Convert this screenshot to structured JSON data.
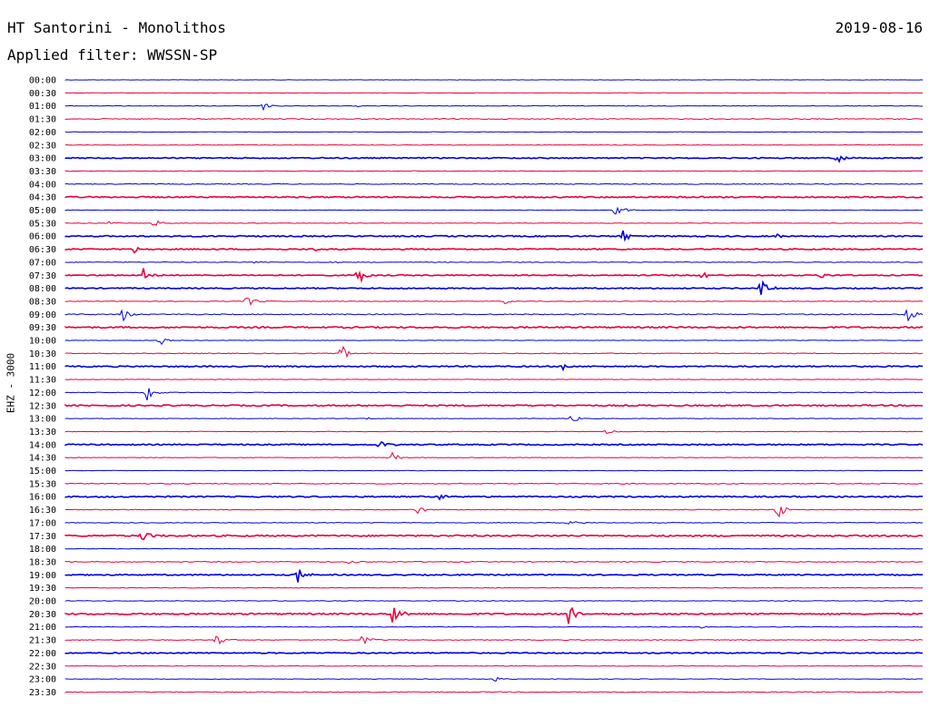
{
  "header": {
    "station": "HT Santorini - Monolithos",
    "date": "2019-08-16",
    "filter": "Applied filter: WWSSN-SP"
  },
  "chart_data": {
    "type": "line",
    "title": "HT Santorini - Monolithos",
    "ylabel": "EHZ - 3000",
    "colors": {
      "even": "#0000e0",
      "odd": "#e8003c"
    },
    "rows": [
      {
        "time": "00:00",
        "noise": 0.4,
        "events": []
      },
      {
        "time": "00:30",
        "noise": 0.4,
        "events": []
      },
      {
        "time": "01:00",
        "noise": 0.6,
        "events": [
          {
            "t": 0.23,
            "a": 5
          },
          {
            "t": 0.34,
            "a": 1
          }
        ]
      },
      {
        "time": "01:30",
        "noise": 1.0,
        "events": []
      },
      {
        "time": "02:00",
        "noise": 0.5,
        "events": []
      },
      {
        "time": "02:30",
        "noise": 0.5,
        "events": []
      },
      {
        "time": "03:00",
        "noise": 1.2,
        "events": [
          {
            "t": 0.9,
            "a": 7
          }
        ]
      },
      {
        "time": "03:30",
        "noise": 0.6,
        "events": []
      },
      {
        "time": "04:00",
        "noise": 0.8,
        "events": []
      },
      {
        "time": "04:30",
        "noise": 1.4,
        "events": []
      },
      {
        "time": "05:00",
        "noise": 0.6,
        "events": [
          {
            "t": 0.64,
            "a": 12
          }
        ]
      },
      {
        "time": "05:30",
        "noise": 0.6,
        "events": [
          {
            "t": 0.1,
            "a": 7
          },
          {
            "t": 0.05,
            "a": 2
          }
        ]
      },
      {
        "time": "06:00",
        "noise": 1.4,
        "events": [
          {
            "t": 0.65,
            "a": 10
          },
          {
            "t": 0.83,
            "a": 3
          }
        ]
      },
      {
        "time": "06:30",
        "noise": 1.3,
        "events": [
          {
            "t": 0.08,
            "a": 5
          },
          {
            "t": 0.29,
            "a": 3
          }
        ]
      },
      {
        "time": "07:00",
        "noise": 0.7,
        "events": [
          {
            "t": 0.22,
            "a": 2
          },
          {
            "t": 0.31,
            "a": 2
          }
        ]
      },
      {
        "time": "07:30",
        "noise": 1.2,
        "events": [
          {
            "t": 0.09,
            "a": 9
          },
          {
            "t": 0.34,
            "a": 12
          },
          {
            "t": 0.74,
            "a": 8
          },
          {
            "t": 0.88,
            "a": 5
          }
        ]
      },
      {
        "time": "08:00",
        "noise": 1.2,
        "events": [
          {
            "t": 0.81,
            "a": 12
          }
        ]
      },
      {
        "time": "08:30",
        "noise": 0.7,
        "events": [
          {
            "t": 0.21,
            "a": 9
          },
          {
            "t": 0.51,
            "a": 4
          }
        ]
      },
      {
        "time": "09:00",
        "noise": 1.1,
        "events": [
          {
            "t": 0.065,
            "a": 10
          },
          {
            "t": 0.98,
            "a": 15
          }
        ]
      },
      {
        "time": "09:30",
        "noise": 1.6,
        "events": []
      },
      {
        "time": "10:00",
        "noise": 0.6,
        "events": [
          {
            "t": 0.11,
            "a": 6
          }
        ]
      },
      {
        "time": "10:30",
        "noise": 0.9,
        "events": [
          {
            "t": 0.32,
            "a": 13
          }
        ]
      },
      {
        "time": "11:00",
        "noise": 1.4,
        "events": [
          {
            "t": 0.58,
            "a": 5
          }
        ]
      },
      {
        "time": "11:30",
        "noise": 0.6,
        "events": []
      },
      {
        "time": "12:00",
        "noise": 0.7,
        "events": [
          {
            "t": 0.095,
            "a": 12
          }
        ]
      },
      {
        "time": "12:30",
        "noise": 1.5,
        "events": []
      },
      {
        "time": "13:00",
        "noise": 0.6,
        "events": [
          {
            "t": 0.35,
            "a": 2
          },
          {
            "t": 0.59,
            "a": 7
          }
        ]
      },
      {
        "time": "13:30",
        "noise": 0.6,
        "events": [
          {
            "t": 0.63,
            "a": 3
          }
        ]
      },
      {
        "time": "14:00",
        "noise": 1.3,
        "events": [
          {
            "t": 0.365,
            "a": 8
          }
        ]
      },
      {
        "time": "14:30",
        "noise": 0.6,
        "events": [
          {
            "t": 0.38,
            "a": 7
          }
        ]
      },
      {
        "time": "15:00",
        "noise": 0.5,
        "events": []
      },
      {
        "time": "15:30",
        "noise": 1.0,
        "events": []
      },
      {
        "time": "16:00",
        "noise": 1.4,
        "events": [
          {
            "t": 0.435,
            "a": 4
          }
        ]
      },
      {
        "time": "16:30",
        "noise": 0.8,
        "events": [
          {
            "t": 0.41,
            "a": 5
          },
          {
            "t": 0.83,
            "a": 12
          }
        ]
      },
      {
        "time": "17:00",
        "noise": 0.8,
        "events": [
          {
            "t": 0.585,
            "a": 10
          }
        ]
      },
      {
        "time": "17:30",
        "noise": 1.6,
        "events": [
          {
            "t": 0.088,
            "a": 11
          }
        ]
      },
      {
        "time": "18:00",
        "noise": 0.6,
        "events": []
      },
      {
        "time": "18:30",
        "noise": 1.0,
        "events": [
          {
            "t": 0.33,
            "a": 3
          }
        ]
      },
      {
        "time": "19:00",
        "noise": 1.3,
        "events": [
          {
            "t": 0.27,
            "a": 10
          }
        ]
      },
      {
        "time": "19:30",
        "noise": 0.6,
        "events": []
      },
      {
        "time": "20:00",
        "noise": 0.7,
        "events": []
      },
      {
        "time": "20:30",
        "noise": 1.6,
        "events": [
          {
            "t": 0.38,
            "a": 17
          },
          {
            "t": 0.585,
            "a": 16
          }
        ]
      },
      {
        "time": "21:00",
        "noise": 0.6,
        "events": [
          {
            "t": 0.74,
            "a": 2
          }
        ]
      },
      {
        "time": "21:30",
        "noise": 0.8,
        "events": [
          {
            "t": 0.175,
            "a": 9
          },
          {
            "t": 0.345,
            "a": 10
          }
        ]
      },
      {
        "time": "22:00",
        "noise": 1.2,
        "events": []
      },
      {
        "time": "22:30",
        "noise": 0.6,
        "events": []
      },
      {
        "time": "23:00",
        "noise": 0.6,
        "events": [
          {
            "t": 0.5,
            "a": 3
          }
        ]
      },
      {
        "time": "23:30",
        "noise": 1.0,
        "events": []
      }
    ]
  }
}
